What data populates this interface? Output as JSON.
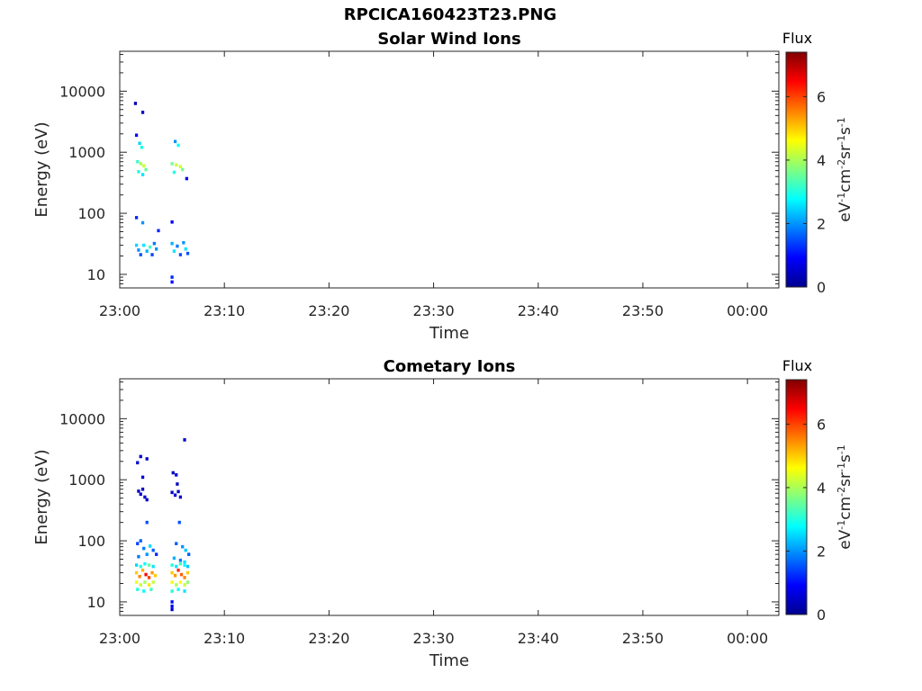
{
  "figure_title": "RPCICA160423T23.PNG",
  "chart_data": [
    {
      "type": "heatmap",
      "title": "Solar Wind Ions",
      "xlabel": "Time",
      "ylabel": "Energy (eV)",
      "x_ticks": [
        "23:00",
        "23:10",
        "23:20",
        "23:30",
        "23:40",
        "23:50",
        "00:00"
      ],
      "x_range_minutes": [
        0,
        63
      ],
      "y_scale": "log",
      "y_ticks": [
        "10",
        "100",
        "1000",
        "10000"
      ],
      "y_range": [
        6,
        45000
      ],
      "colorbar": {
        "label": "Flux",
        "unit_label": "eV-1cm-2sr-1s-1",
        "ticks": [
          "0",
          "2",
          "4",
          "6"
        ],
        "range": [
          0,
          7.4
        ],
        "colormap": "jet"
      },
      "cells": [
        [
          1.5,
          6300,
          0.4
        ],
        [
          2.2,
          4500,
          0.5
        ],
        [
          1.6,
          1900,
          1.0
        ],
        [
          1.9,
          1400,
          2.5
        ],
        [
          2.1,
          1200,
          3.0
        ],
        [
          1.7,
          700,
          3.2
        ],
        [
          2.0,
          650,
          4.0
        ],
        [
          2.3,
          600,
          4.2
        ],
        [
          2.5,
          520,
          3.5
        ],
        [
          1.8,
          480,
          3.0
        ],
        [
          2.2,
          430,
          2.6
        ],
        [
          5.3,
          1500,
          2.0
        ],
        [
          5.6,
          1300,
          2.8
        ],
        [
          5.0,
          650,
          3.6
        ],
        [
          5.4,
          620,
          4.2
        ],
        [
          5.8,
          580,
          4.3
        ],
        [
          6.0,
          520,
          3.6
        ],
        [
          5.2,
          470,
          3.0
        ],
        [
          6.4,
          370,
          0.8
        ],
        [
          1.6,
          85,
          1.2
        ],
        [
          2.2,
          70,
          2.0
        ],
        [
          3.7,
          52,
          1.2
        ],
        [
          5.0,
          72,
          0.8
        ],
        [
          1.6,
          30,
          2.5
        ],
        [
          1.8,
          25,
          2.0
        ],
        [
          2.0,
          21,
          1.5
        ],
        [
          2.3,
          30,
          2.6
        ],
        [
          2.6,
          24,
          2.2
        ],
        [
          2.9,
          28,
          3.2
        ],
        [
          3.1,
          21,
          1.4
        ],
        [
          3.3,
          32,
          1.8
        ],
        [
          3.5,
          26,
          2.0
        ],
        [
          5.0,
          32,
          2.2
        ],
        [
          5.2,
          24,
          2.6
        ],
        [
          5.5,
          29,
          1.8
        ],
        [
          5.8,
          21,
          1.5
        ],
        [
          6.1,
          33,
          2.0
        ],
        [
          6.3,
          26,
          2.6
        ],
        [
          6.5,
          22,
          1.5
        ],
        [
          5.0,
          9,
          1.2
        ],
        [
          5.0,
          7.5,
          1.0
        ]
      ]
    },
    {
      "type": "heatmap",
      "title": "Cometary Ions",
      "xlabel": "Time",
      "ylabel": "Energy (eV)",
      "x_ticks": [
        "23:00",
        "23:10",
        "23:20",
        "23:30",
        "23:40",
        "23:50",
        "00:00"
      ],
      "x_range_minutes": [
        0,
        63
      ],
      "y_scale": "log",
      "y_ticks": [
        "10",
        "100",
        "1000",
        "10000"
      ],
      "y_range": [
        6,
        45000
      ],
      "colorbar": {
        "label": "Flux",
        "unit_label": "eV-1cm-2sr-1s-1",
        "ticks": [
          "0",
          "2",
          "4",
          "6"
        ],
        "range": [
          0,
          7.4
        ],
        "colormap": "jet"
      },
      "cells": [
        [
          2.0,
          2400,
          0.5
        ],
        [
          1.7,
          1900,
          0.6
        ],
        [
          2.6,
          2200,
          0.5
        ],
        [
          2.2,
          1100,
          0.6
        ],
        [
          6.2,
          4500,
          0.5
        ],
        [
          1.8,
          650,
          0.5
        ],
        [
          2.0,
          580,
          0.6
        ],
        [
          2.2,
          700,
          0.5
        ],
        [
          2.4,
          520,
          0.6
        ],
        [
          2.6,
          470,
          0.5
        ],
        [
          5.1,
          1300,
          0.5
        ],
        [
          5.4,
          1200,
          0.6
        ],
        [
          5.0,
          620,
          0.5
        ],
        [
          5.3,
          560,
          0.6
        ],
        [
          5.6,
          640,
          0.5
        ],
        [
          5.8,
          520,
          0.6
        ],
        [
          5.5,
          850,
          0.5
        ],
        [
          2.6,
          200,
          1.5
        ],
        [
          1.7,
          90,
          1.4
        ],
        [
          2.0,
          100,
          1.6
        ],
        [
          2.3,
          75,
          1.8
        ],
        [
          2.6,
          60,
          2.0
        ],
        [
          2.9,
          82,
          2.5
        ],
        [
          3.2,
          70,
          1.6
        ],
        [
          3.5,
          60,
          1.2
        ],
        [
          1.8,
          55,
          1.8
        ],
        [
          5.7,
          200,
          1.5
        ],
        [
          5.4,
          90,
          1.6
        ],
        [
          6.0,
          80,
          2.0
        ],
        [
          6.3,
          70,
          2.4
        ],
        [
          6.6,
          60,
          1.6
        ],
        [
          5.2,
          52,
          2.2
        ],
        [
          5.8,
          48,
          1.8
        ],
        [
          6.2,
          45,
          2.6
        ],
        [
          1.6,
          40,
          2.5
        ],
        [
          2.0,
          38,
          3.0
        ],
        [
          2.4,
          42,
          2.8
        ],
        [
          2.8,
          40,
          3.5
        ],
        [
          3.2,
          38,
          2.6
        ],
        [
          1.6,
          30,
          5.0
        ],
        [
          1.9,
          26,
          5.5
        ],
        [
          2.2,
          33,
          5.2
        ],
        [
          2.5,
          28,
          6.5
        ],
        [
          2.8,
          25,
          6.0
        ],
        [
          3.1,
          30,
          5.4
        ],
        [
          3.4,
          27,
          5.0
        ],
        [
          1.6,
          21,
          4.5
        ],
        [
          2.0,
          19,
          4.2
        ],
        [
          2.4,
          21,
          4.0
        ],
        [
          2.8,
          19,
          4.8
        ],
        [
          3.2,
          21,
          4.2
        ],
        [
          1.7,
          16,
          3.0
        ],
        [
          2.3,
          15,
          2.8
        ],
        [
          3.0,
          16,
          3.2
        ],
        [
          5.0,
          40,
          3.0
        ],
        [
          5.4,
          38,
          2.6
        ],
        [
          5.8,
          42,
          3.2
        ],
        [
          6.2,
          40,
          2.8
        ],
        [
          6.5,
          38,
          2.4
        ],
        [
          5.0,
          30,
          5.0
        ],
        [
          5.3,
          27,
          5.4
        ],
        [
          5.6,
          33,
          6.2
        ],
        [
          5.9,
          28,
          5.8
        ],
        [
          6.2,
          25,
          5.5
        ],
        [
          6.5,
          30,
          5.0
        ],
        [
          5.0,
          21,
          4.5
        ],
        [
          5.4,
          19,
          4.0
        ],
        [
          5.8,
          21,
          4.6
        ],
        [
          6.2,
          19,
          4.2
        ],
        [
          6.5,
          21,
          3.8
        ],
        [
          5.0,
          15,
          3.0
        ],
        [
          5.6,
          16,
          2.8
        ],
        [
          6.2,
          15,
          2.6
        ],
        [
          5.0,
          10,
          1.0
        ],
        [
          5.0,
          8.5,
          0.8
        ],
        [
          5.0,
          7.5,
          0.6
        ]
      ]
    }
  ]
}
